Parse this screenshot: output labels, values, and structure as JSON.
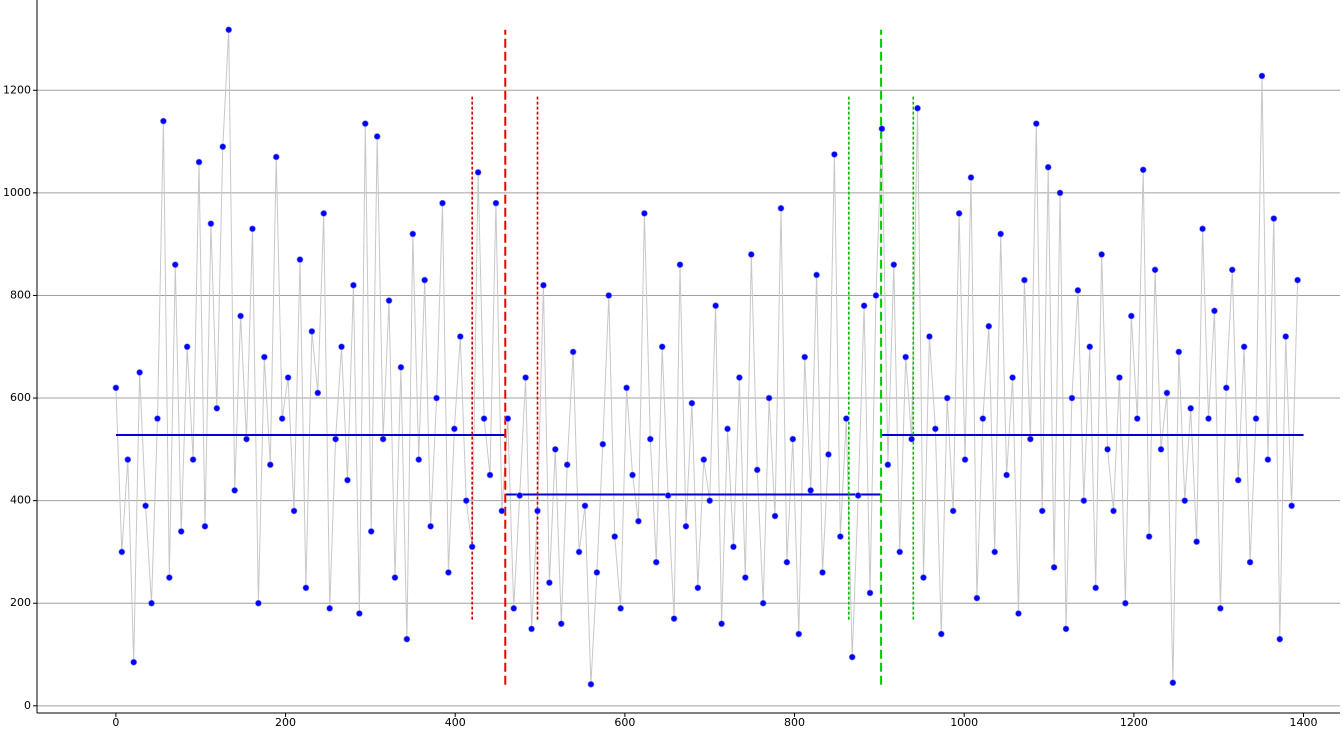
{
  "chart_data": {
    "type": "scatter",
    "xlim": [
      -93,
      1443
    ],
    "ylim": [
      -14,
      1376
    ],
    "xticks": [
      0,
      200,
      400,
      600,
      800,
      1000,
      1200,
      1400
    ],
    "yticks": [
      0,
      200,
      400,
      600,
      800,
      1000,
      1200
    ],
    "grid": true,
    "line_color": "#c8c8c8",
    "point_color": "#0000ff",
    "x": [
      0,
      7,
      14,
      21,
      28,
      35,
      42,
      49,
      56,
      63,
      70,
      77,
      84,
      91,
      98,
      105,
      112,
      119,
      126,
      133,
      140,
      147,
      154,
      161,
      168,
      175,
      182,
      189,
      196,
      203,
      210,
      217,
      224,
      231,
      238,
      245,
      252,
      259,
      266,
      273,
      280,
      287,
      294,
      301,
      308,
      315,
      322,
      329,
      336,
      343,
      350,
      357,
      364,
      371,
      378,
      385,
      392,
      399,
      406,
      413,
      420,
      427,
      434,
      441,
      448,
      455,
      462,
      469,
      476,
      483,
      490,
      497,
      504,
      511,
      518,
      525,
      532,
      539,
      546,
      553,
      560,
      567,
      574,
      581,
      588,
      595,
      602,
      609,
      616,
      623,
      630,
      637,
      644,
      651,
      658,
      665,
      672,
      679,
      686,
      693,
      700,
      707,
      714,
      721,
      728,
      735,
      742,
      749,
      756,
      763,
      770,
      777,
      784,
      791,
      798,
      805,
      812,
      819,
      826,
      833,
      840,
      847,
      854,
      861,
      868,
      875,
      882,
      889,
      896,
      903,
      910,
      917,
      924,
      931,
      938,
      945,
      952,
      959,
      966,
      973,
      980,
      987,
      994,
      1001,
      1008,
      1015,
      1022,
      1029,
      1036,
      1043,
      1050,
      1057,
      1064,
      1071,
      1078,
      1085,
      1092,
      1099,
      1106,
      1113,
      1120,
      1127,
      1134,
      1141,
      1148,
      1155,
      1162,
      1169,
      1176,
      1183,
      1190,
      1197,
      1204,
      1211,
      1218,
      1225,
      1232,
      1239,
      1246,
      1253,
      1260,
      1267,
      1274,
      1281,
      1288,
      1295,
      1302,
      1309,
      1316,
      1323,
      1330,
      1337,
      1344,
      1351,
      1358,
      1365,
      1372,
      1379,
      1386,
      1393
    ],
    "values": [
      620,
      300,
      480,
      85,
      650,
      390,
      200,
      560,
      1140,
      250,
      860,
      340,
      700,
      480,
      1060,
      350,
      940,
      580,
      1090,
      1318,
      420,
      760,
      520,
      930,
      200,
      680,
      470,
      1070,
      560,
      640,
      380,
      870,
      230,
      730,
      610,
      960,
      190,
      520,
      700,
      440,
      820,
      180,
      1135,
      340,
      1110,
      520,
      790,
      250,
      660,
      130,
      920,
      480,
      830,
      350,
      600,
      980,
      260,
      540,
      720,
      400,
      310,
      1040,
      560,
      450,
      980,
      380,
      560,
      190,
      410,
      640,
      150,
      380,
      820,
      240,
      500,
      160,
      470,
      690,
      300,
      390,
      42,
      260,
      510,
      800,
      330,
      190,
      620,
      450,
      360,
      960,
      520,
      280,
      700,
      410,
      170,
      860,
      350,
      590,
      230,
      480,
      400,
      780,
      160,
      540,
      310,
      640,
      250,
      880,
      460,
      200,
      600,
      370,
      970,
      280,
      520,
      140,
      680,
      420,
      840,
      260,
      490,
      1075,
      330,
      560,
      95,
      410,
      780,
      220,
      800,
      1125,
      470,
      860,
      300,
      680,
      520,
      1165,
      250,
      720,
      540,
      140,
      600,
      380,
      960,
      480,
      1030,
      210,
      560,
      740,
      300,
      920,
      450,
      640,
      180,
      830,
      520,
      1135,
      380,
      1050,
      270,
      1000,
      150,
      600,
      810,
      400,
      700,
      230,
      880,
      500,
      380,
      640,
      200,
      760,
      560,
      1045,
      330,
      850,
      500,
      610,
      45,
      690,
      400,
      580,
      320,
      930,
      560,
      770,
      190,
      620,
      850,
      440,
      700,
      280,
      560,
      1228,
      480,
      950,
      130,
      720,
      390,
      830
    ],
    "segments": [
      {
        "x0": 0,
        "x1": 459,
        "y": 528,
        "color": "#0000cc"
      },
      {
        "x0": 459,
        "x1": 902,
        "y": 412,
        "color": "#0000cc"
      },
      {
        "x0": 902,
        "x1": 1400,
        "y": 528,
        "color": "#0000cc"
      }
    ],
    "vlines": [
      {
        "x": 420,
        "y0": 168,
        "y1": 1191,
        "color": "#cc0000",
        "style": "dotted"
      },
      {
        "x": 459,
        "y0": 41,
        "y1": 1318,
        "color": "#ee0000",
        "style": "dashed"
      },
      {
        "x": 497,
        "y0": 168,
        "y1": 1191,
        "color": "#cc0000",
        "style": "dotted"
      },
      {
        "x": 864,
        "y0": 168,
        "y1": 1191,
        "color": "#00bb00",
        "style": "dotted"
      },
      {
        "x": 902,
        "y0": 41,
        "y1": 1318,
        "color": "#00cc00",
        "style": "dashed"
      },
      {
        "x": 940,
        "y0": 168,
        "y1": 1191,
        "color": "#00bb00",
        "style": "dotted"
      }
    ]
  }
}
